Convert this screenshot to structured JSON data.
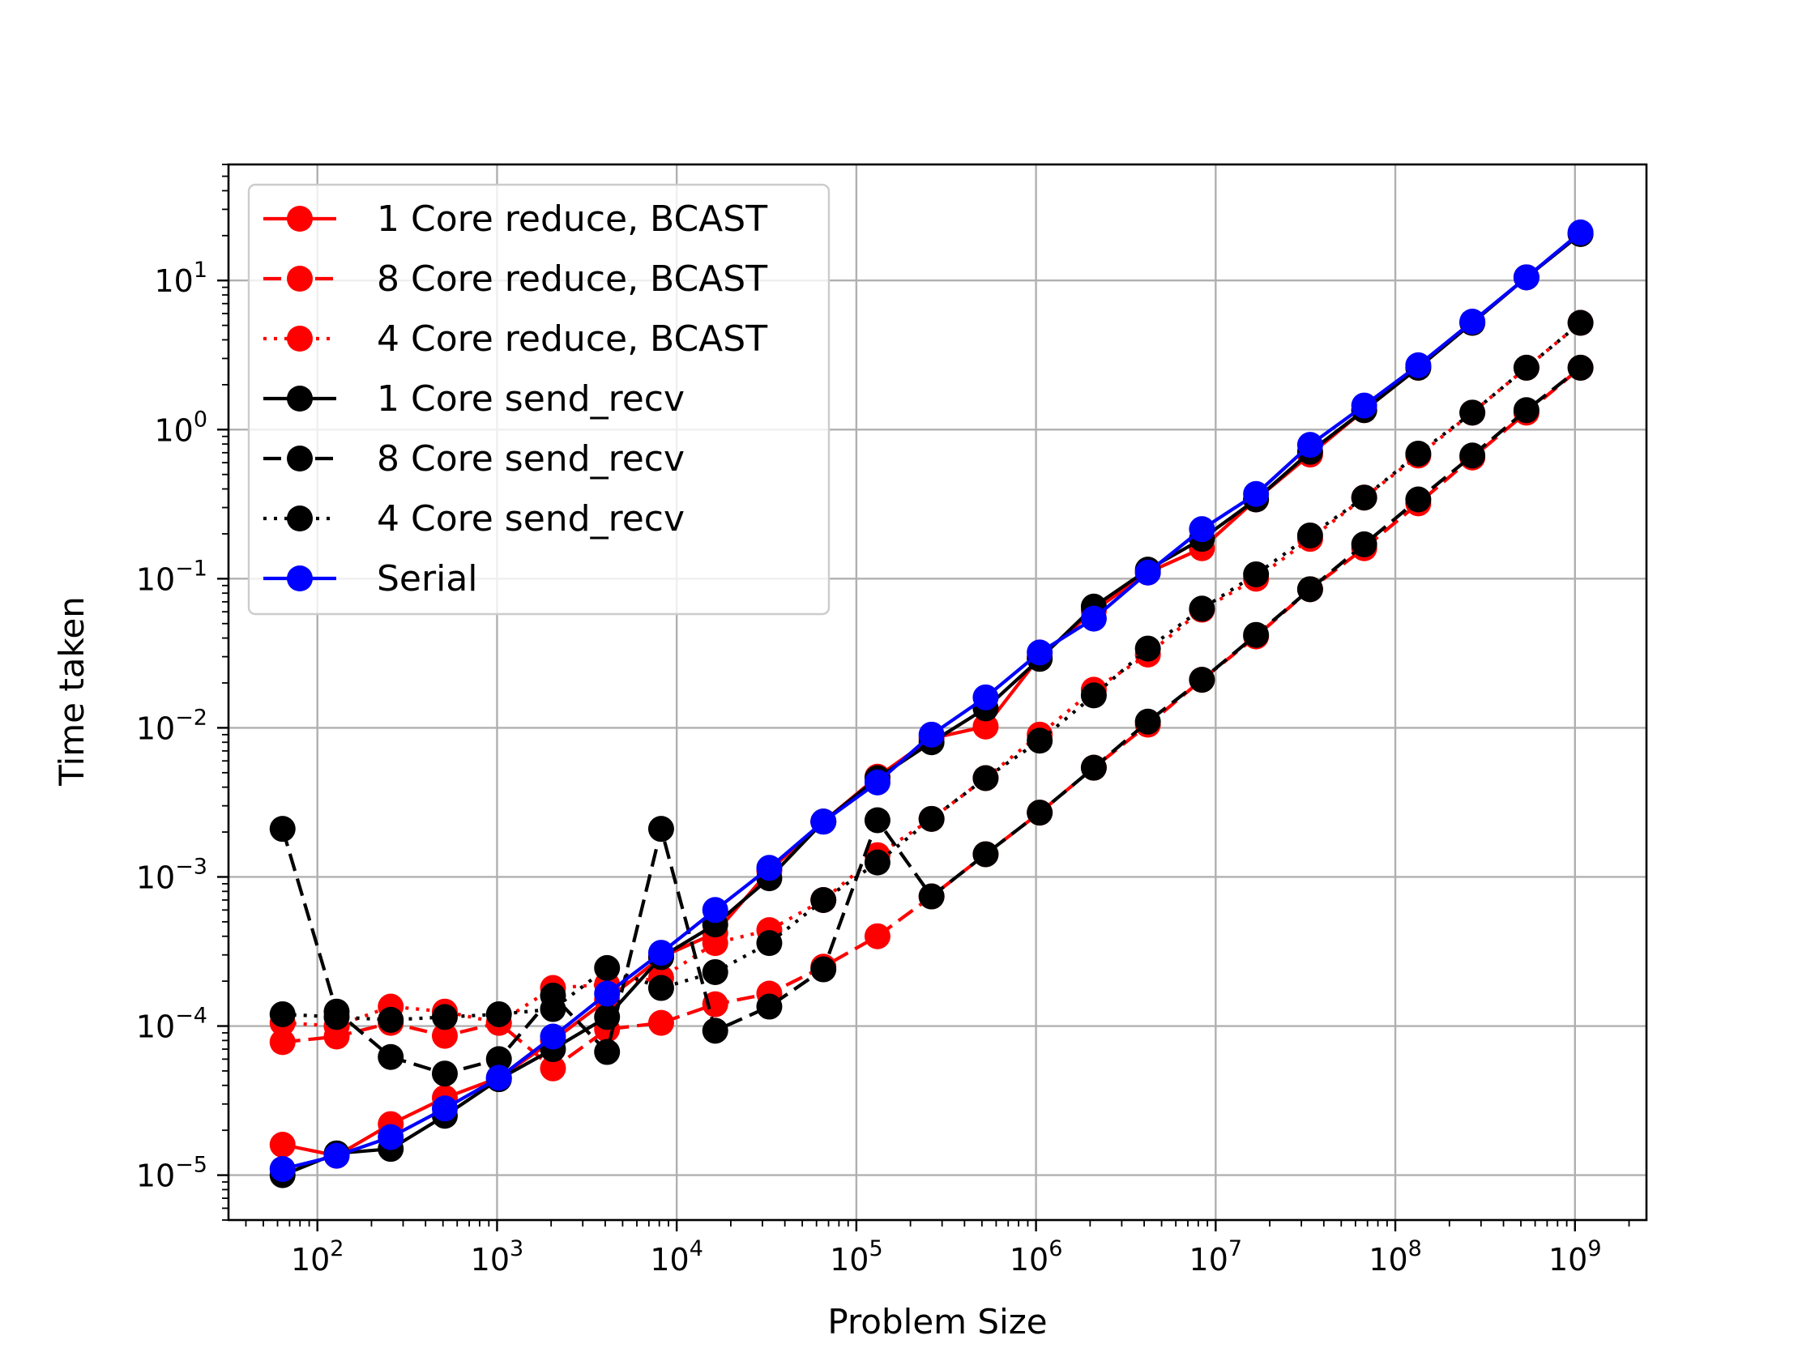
{
  "chart_data": {
    "type": "line",
    "title": "",
    "xlabel": "Problem Size",
    "ylabel": "Time taken",
    "xscale": "log",
    "yscale": "log",
    "xlim": [
      32,
      2500000000.0
    ],
    "ylim": [
      5e-06,
      60
    ],
    "grid": true,
    "legend_position": "top-left",
    "x_tick_labels": [
      {
        "value": 100,
        "base": "10",
        "exp": "2"
      },
      {
        "value": 1000,
        "base": "10",
        "exp": "3"
      },
      {
        "value": 10000,
        "base": "10",
        "exp": "4"
      },
      {
        "value": 100000,
        "base": "10",
        "exp": "5"
      },
      {
        "value": 1000000,
        "base": "10",
        "exp": "6"
      },
      {
        "value": 10000000,
        "base": "10",
        "exp": "7"
      },
      {
        "value": 100000000,
        "base": "10",
        "exp": "8"
      },
      {
        "value": 1000000000,
        "base": "10",
        "exp": "9"
      }
    ],
    "y_tick_labels": [
      {
        "value": 1e-05,
        "base": "10",
        "exp": "−5"
      },
      {
        "value": 0.0001,
        "base": "10",
        "exp": "−4"
      },
      {
        "value": 0.001,
        "base": "10",
        "exp": "−3"
      },
      {
        "value": 0.01,
        "base": "10",
        "exp": "−2"
      },
      {
        "value": 0.1,
        "base": "10",
        "exp": "−1"
      },
      {
        "value": 1,
        "base": "10",
        "exp": "0"
      },
      {
        "value": 10,
        "base": "10",
        "exp": "1"
      }
    ],
    "x": [
      64,
      128,
      256,
      512,
      1024,
      2048,
      4096,
      8192,
      16384,
      32768,
      65536,
      131072,
      262144,
      524288,
      1048576,
      2097152,
      4194304,
      8388608,
      16777216,
      33554432,
      67108864,
      134217728,
      268435456,
      536870912,
      1073741824
    ],
    "series": [
      {
        "name": "1 Core reduce, BCAST",
        "color": "#ff0000",
        "dash": "solid",
        "values": [
          1.6e-05,
          1.35e-05,
          2.2e-05,
          3.3e-05,
          4.5e-05,
          8e-05,
          0.00015,
          0.00029,
          0.00042,
          0.0011,
          0.00235,
          0.0047,
          0.0085,
          0.0102,
          0.03,
          0.061,
          0.11,
          0.16,
          0.34,
          0.68,
          1.35,
          2.6,
          5.2,
          10.5,
          20.5
        ]
      },
      {
        "name": "8 Core reduce, BCAST",
        "color": "#ff0000",
        "dash": "dashed",
        "values": [
          7.8e-05,
          8.5e-05,
          0.000105,
          8.6e-05,
          0.000105,
          5.2e-05,
          9.5e-05,
          0.000105,
          0.00014,
          0.000165,
          0.00025,
          0.0004,
          0.00074,
          0.00142,
          0.0027,
          0.0054,
          0.0105,
          0.021,
          0.041,
          0.085,
          0.16,
          0.32,
          0.65,
          1.3,
          2.6
        ]
      },
      {
        "name": "4 Core reduce, BCAST",
        "color": "#ff0000",
        "dash": "dotted",
        "values": [
          0.000105,
          0.0001,
          0.000135,
          0.000125,
          0.000105,
          0.00018,
          0.00019,
          0.00021,
          0.00036,
          0.00044,
          0.0007,
          0.0014,
          0.00245,
          0.0046,
          0.009,
          0.018,
          0.031,
          0.062,
          0.1,
          0.185,
          0.35,
          0.67,
          1.3,
          2.6,
          5.2
        ]
      },
      {
        "name": "1 Core send_recv",
        "color": "#000000",
        "dash": "solid",
        "values": [
          1e-05,
          1.4e-05,
          1.5e-05,
          2.5e-05,
          4.4e-05,
          7e-05,
          0.000115,
          0.00029,
          0.00048,
          0.00098,
          0.00235,
          0.0046,
          0.008,
          0.0135,
          0.029,
          0.065,
          0.115,
          0.185,
          0.34,
          0.71,
          1.35,
          2.6,
          5.2,
          10.5,
          20.5
        ]
      },
      {
        "name": "8 Core send_recv",
        "color": "#000000",
        "dash": "dashed",
        "values": [
          0.0021,
          0.000125,
          6.2e-05,
          4.8e-05,
          6e-05,
          0.00016,
          6.7e-05,
          0.0021,
          9.3e-05,
          0.000135,
          0.00024,
          0.0024,
          0.00074,
          0.00142,
          0.0027,
          0.0054,
          0.011,
          0.021,
          0.042,
          0.085,
          0.17,
          0.34,
          0.67,
          1.35,
          2.6
        ]
      },
      {
        "name": "4 Core send_recv",
        "color": "#000000",
        "dash": "dotted",
        "values": [
          0.00012,
          0.000115,
          0.00011,
          0.000115,
          0.00012,
          0.00013,
          0.000245,
          0.00018,
          0.00023,
          0.00036,
          0.0007,
          0.00125,
          0.00245,
          0.0046,
          0.0082,
          0.0165,
          0.034,
          0.063,
          0.107,
          0.195,
          0.35,
          0.69,
          1.3,
          2.6,
          5.2
        ]
      },
      {
        "name": "Serial",
        "color": "#0000ff",
        "dash": "solid",
        "values": [
          1.1e-05,
          1.35e-05,
          1.8e-05,
          2.8e-05,
          4.5e-05,
          8.5e-05,
          0.000165,
          0.00031,
          0.0006,
          0.00115,
          0.00235,
          0.0043,
          0.009,
          0.016,
          0.032,
          0.054,
          0.11,
          0.215,
          0.37,
          0.79,
          1.45,
          2.7,
          5.3,
          10.5,
          21
        ]
      }
    ]
  }
}
